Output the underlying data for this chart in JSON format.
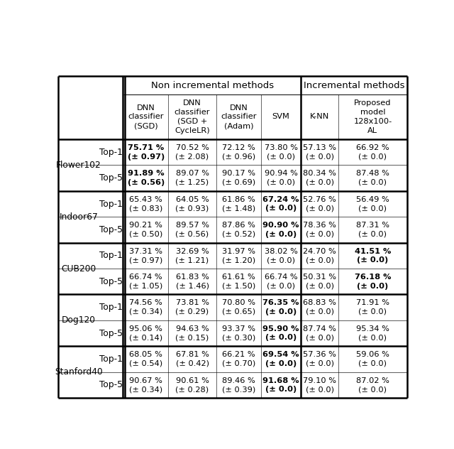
{
  "header_row1_labels": [
    "Non incremental methods",
    "Incremental methods"
  ],
  "col_headers": [
    "DNN\nclassifier\n(SGD)",
    "DNN\nclassifier\n(SGD +\nCycleLR)",
    "DNN\nclassifier\n(Adam)",
    "SVM",
    "K-NN",
    "Proposed\nmodel\n128x100-\nAL"
  ],
  "datasets": [
    "Flower102",
    "Indoor67",
    "CUB200",
    "Dog120",
    "Stanford40"
  ],
  "top_labels": [
    "Top-1",
    "Top-5"
  ],
  "data": {
    "Flower102": {
      "Top-1": {
        "values": [
          "75.71 %",
          "70.52 %",
          "72.12 %",
          "73.80 %",
          "57.13 %",
          "66.92 %"
        ],
        "stds": [
          "(± 0.97)",
          "(± 2.08)",
          "(± 0.96)",
          "(± 0.0)",
          "(± 0.0)",
          "(± 0.0)"
        ],
        "bold": [
          true,
          false,
          false,
          false,
          false,
          false
        ]
      },
      "Top-5": {
        "values": [
          "91.89 %",
          "89.07 %",
          "90.17 %",
          "90.94 %",
          "80.34 %",
          "87.48 %"
        ],
        "stds": [
          "(± 0.56)",
          "(± 1.25)",
          "(± 0.69)",
          "(± 0.0)",
          "(± 0.0)",
          "(± 0.0)"
        ],
        "bold": [
          true,
          false,
          false,
          false,
          false,
          false
        ]
      }
    },
    "Indoor67": {
      "Top-1": {
        "values": [
          "65.43 %",
          "64.05 %",
          "61.86 %",
          "67.24 %",
          "52.76 %",
          "56.49 %"
        ],
        "stds": [
          "(± 0.83)",
          "(± 0.93)",
          "(± 1.48)",
          "(± 0.0)",
          "(± 0.0)",
          "(± 0.0)"
        ],
        "bold": [
          false,
          false,
          false,
          true,
          false,
          false
        ]
      },
      "Top-5": {
        "values": [
          "90.21 %",
          "89.57 %",
          "87.86 %",
          "90.90 %",
          "78.36 %",
          "87.31 %"
        ],
        "stds": [
          "(± 0.50)",
          "(± 0.56)",
          "(± 0.52)",
          "(± 0.0)",
          "(± 0.0)",
          "(± 0.0)"
        ],
        "bold": [
          false,
          false,
          false,
          true,
          false,
          false
        ]
      }
    },
    "CUB200": {
      "Top-1": {
        "values": [
          "37.31 %",
          "32.69 %",
          "31.97 %",
          "38.02 %",
          "24.70 %",
          "41.51 %"
        ],
        "stds": [
          "(± 0.97)",
          "(± 1.21)",
          "(± 1.20)",
          "(± 0.0)",
          "(± 0.0)",
          "(± 0.0)"
        ],
        "bold": [
          false,
          false,
          false,
          false,
          false,
          true
        ]
      },
      "Top-5": {
        "values": [
          "66.74 %",
          "61.83 %",
          "61.61 %",
          "66.74 %",
          "50.31 %",
          "76.18 %"
        ],
        "stds": [
          "(± 1.05)",
          "(± 1.46)",
          "(± 1.50)",
          "(± 0.0)",
          "(± 0.0)",
          "(± 0.0)"
        ],
        "bold": [
          false,
          false,
          false,
          false,
          false,
          true
        ]
      }
    },
    "Dog120": {
      "Top-1": {
        "values": [
          "74.56 %",
          "73.81 %",
          "70.80 %",
          "76.35 %",
          "68.83 %",
          "71.91 %"
        ],
        "stds": [
          "(± 0.34)",
          "(± 0.29)",
          "(± 0.65)",
          "(± 0.0)",
          "(± 0.0)",
          "(± 0.0)"
        ],
        "bold": [
          false,
          false,
          false,
          true,
          false,
          false
        ]
      },
      "Top-5": {
        "values": [
          "95.06 %",
          "94.63 %",
          "93.37 %",
          "95.90 %",
          "87.74 %",
          "95.34 %"
        ],
        "stds": [
          "(± 0.14)",
          "(± 0.15)",
          "(± 0.30)",
          "(± 0.0)",
          "(± 0.0)",
          "(± 0.0)"
        ],
        "bold": [
          false,
          false,
          false,
          true,
          false,
          false
        ]
      }
    },
    "Stanford40": {
      "Top-1": {
        "values": [
          "68.05 %",
          "67.81 %",
          "66.21 %",
          "69.54 %",
          "57.36 %",
          "59.06 %"
        ],
        "stds": [
          "(± 0.54)",
          "(± 0.42)",
          "(± 0.70)",
          "(± 0.0)",
          "(± 0.0)",
          "(± 0.0)"
        ],
        "bold": [
          false,
          false,
          false,
          true,
          false,
          false
        ]
      },
      "Top-5": {
        "values": [
          "90.67 %",
          "90.61 %",
          "89.46 %",
          "91.68 %",
          "79.10 %",
          "87.02 %"
        ],
        "stds": [
          "(± 0.34)",
          "(± 0.28)",
          "(± 0.39)",
          "(± 0.0)",
          "(± 0.0)",
          "(± 0.0)"
        ],
        "bold": [
          false,
          false,
          false,
          true,
          false,
          false
        ]
      }
    }
  },
  "bg_color": "#ffffff",
  "thick_lw": 1.8,
  "thin_lw": 0.7,
  "fig_width": 6.4,
  "fig_height": 6.32,
  "dpi": 100
}
